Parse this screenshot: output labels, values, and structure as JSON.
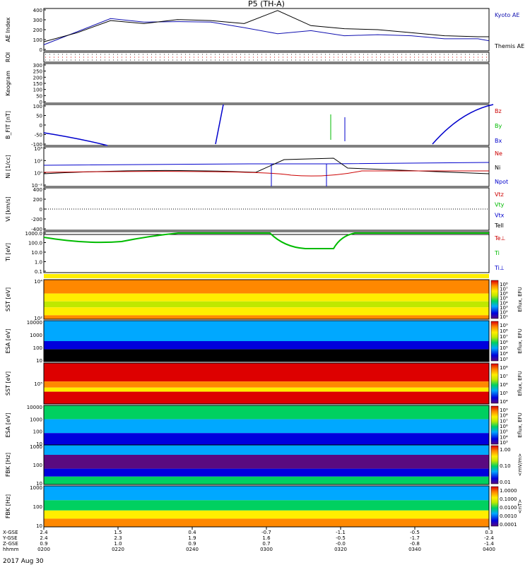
{
  "title": "P5 (TH-A)",
  "date_label": "2017 Aug 30",
  "colors": {
    "kyoto": "#1010b0",
    "themis": "#000000",
    "red": "#cc0000",
    "green": "#00bb00",
    "blue": "#0000cc"
  },
  "chart_data": [
    {
      "type": "line",
      "panel": "ae",
      "ylabel": "AE Index",
      "yticks": [
        "400",
        "300",
        "200",
        "100",
        "0"
      ],
      "ylim": [
        0,
        420
      ],
      "legend": [
        "Kyoto AE",
        "Themis AE"
      ],
      "x_hours": [
        0,
        0.15,
        0.3,
        0.45,
        0.6,
        0.75,
        0.9,
        1.05,
        1.2,
        1.35,
        1.5,
        1.65,
        1.8,
        1.95,
        2.0
      ],
      "series": [
        {
          "name": "Kyoto AE",
          "values": [
            60,
            190,
            320,
            285,
            290,
            285,
            230,
            170,
            200,
            150,
            160,
            150,
            120,
            120,
            100
          ]
        },
        {
          "name": "Themis AE",
          "values": [
            90,
            180,
            300,
            270,
            310,
            300,
            270,
            400,
            250,
            220,
            210,
            180,
            150,
            140,
            140
          ]
        }
      ]
    },
    {
      "type": "table",
      "panel": "roi",
      "ylabel": "ROI"
    },
    {
      "type": "line",
      "panel": "keogram",
      "ylabel": "Keogram",
      "yticks": [
        "300",
        "250",
        "200",
        "150",
        "100",
        "50",
        "0"
      ]
    },
    {
      "type": "line",
      "panel": "bfit",
      "ylabel": "B_FIT [nT]",
      "yticks": [
        "100",
        "50",
        "0",
        "-50",
        "-100"
      ],
      "ylim": [
        -100,
        100
      ],
      "legend": [
        "Bz",
        "By",
        "Bx"
      ]
    },
    {
      "type": "line",
      "panel": "density",
      "ylabel": "Ni [1/cc]",
      "yticks": [
        "10⁴",
        "10²",
        "10⁰",
        "10⁻²"
      ],
      "legend": [
        "Ne",
        "Ni",
        "Npot"
      ]
    },
    {
      "type": "line",
      "panel": "velocity",
      "ylabel": "Vi [km/s]",
      "yticks": [
        "400",
        "200",
        "0",
        "-200",
        "-400"
      ],
      "ylim": [
        -400,
        400
      ],
      "legend": [
        "Vtz",
        "Vty",
        "Vtx",
        "Tell"
      ]
    },
    {
      "type": "line",
      "panel": "temperature",
      "ylabel": "Ti [eV]",
      "yticks": [
        "1000.0",
        "100.0",
        "10.0",
        "1.0",
        "0.1"
      ],
      "legend": [
        "Te⊥",
        "Ti",
        "Ti⊥"
      ]
    },
    {
      "type": "heatmap",
      "panel": "spec1",
      "ylabel": "SST [eV]",
      "yticks": [
        "10⁴",
        "10²"
      ],
      "cbar_label": "Eflux, EFU",
      "cbar_ticks": [
        "10⁸",
        "10⁷",
        "10⁶",
        "10⁵",
        "10⁴",
        "10³",
        "10²",
        "10¹"
      ]
    },
    {
      "type": "heatmap",
      "panel": "spec2",
      "ylabel": "ESA [eV]",
      "yticks": [
        "10000",
        "1000",
        "100",
        "10"
      ],
      "cbar_label": "Eflux, EFU",
      "cbar_ticks": [
        "10⁹",
        "10⁸",
        "10⁷",
        "10⁶",
        "10⁵",
        "10⁴",
        "10³"
      ]
    },
    {
      "type": "heatmap",
      "panel": "spec3",
      "ylabel": "SST [eV]",
      "yticks": [
        "10⁵"
      ],
      "cbar_label": "Eflux, EFU",
      "cbar_ticks": [
        "10⁸",
        "10⁷",
        "10⁶",
        "10⁵",
        "10⁴"
      ]
    },
    {
      "type": "heatmap",
      "panel": "spec4",
      "ylabel": "ESA [eV]",
      "yticks": [
        "10000",
        "1000",
        "100",
        "10"
      ],
      "cbar_label": "Eflux, EFU",
      "cbar_ticks": [
        "10⁹",
        "10⁸",
        "10⁷",
        "10⁶",
        "10⁵",
        "10⁴",
        "10³"
      ]
    },
    {
      "type": "heatmap",
      "panel": "spec5",
      "ylabel": "FBK [Hz]",
      "yticks": [
        "1000",
        "100",
        "10"
      ],
      "cbar_label": "<mV/m>",
      "cbar_ticks": [
        "1.00",
        "0.10",
        "0.01"
      ]
    },
    {
      "type": "heatmap",
      "panel": "spec6",
      "ylabel": "FBK [Hz]",
      "yticks": [
        "1000",
        "100",
        "10"
      ],
      "cbar_label": "<nT>",
      "cbar_ticks": [
        "1.0000",
        "0.1000",
        "0.0100",
        "0.0010",
        "0.0001"
      ]
    }
  ],
  "xaxis": {
    "row_labels": [
      "X-GSE",
      "Y-GSE",
      "Z-GSE",
      "hhmm"
    ],
    "columns": [
      {
        "values": [
          "2.4",
          "2.4",
          "0.9",
          "0200"
        ]
      },
      {
        "values": [
          "1.5",
          "2.3",
          "1.0",
          "0220"
        ]
      },
      {
        "values": [
          "0.4",
          "1.9",
          "0.9",
          "0240"
        ]
      },
      {
        "values": [
          "-0.7",
          "1.6",
          "0.7",
          "0300"
        ]
      },
      {
        "values": [
          "-1.1",
          "-0.5",
          "-0.0",
          "0320"
        ]
      },
      {
        "values": [
          "-0.5",
          "-1.7",
          "-0.8",
          "0340"
        ]
      },
      {
        "values": [
          "0.3",
          "-2.4",
          "-1.4",
          "0400"
        ]
      }
    ]
  }
}
